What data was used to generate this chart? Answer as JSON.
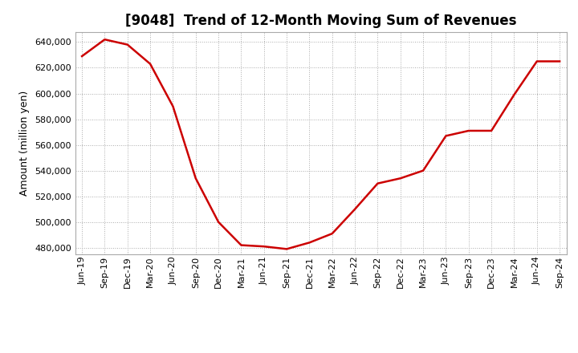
{
  "title": "[9048]  Trend of 12-Month Moving Sum of Revenues",
  "ylabel": "Amount (million yen)",
  "line_color": "#cc0000",
  "background_color": "#ffffff",
  "plot_bg_color": "#ffffff",
  "grid_color": "#aaaaaa",
  "x_labels": [
    "Jun-19",
    "Sep-19",
    "Dec-19",
    "Mar-20",
    "Jun-20",
    "Sep-20",
    "Dec-20",
    "Mar-21",
    "Jun-21",
    "Sep-21",
    "Dec-21",
    "Mar-22",
    "Jun-22",
    "Sep-22",
    "Dec-22",
    "Mar-23",
    "Jun-23",
    "Sep-23",
    "Dec-23",
    "Mar-24",
    "Jun-24",
    "Sep-24"
  ],
  "x_values": [
    0,
    1,
    2,
    3,
    4,
    5,
    6,
    7,
    8,
    9,
    10,
    11,
    12,
    13,
    14,
    15,
    16,
    17,
    18,
    19,
    20,
    21
  ],
  "y_values": [
    629000,
    642000,
    638000,
    623000,
    590000,
    534000,
    500000,
    482000,
    481000,
    479000,
    484000,
    491000,
    510000,
    530000,
    534000,
    540000,
    567000,
    571000,
    571000,
    599000,
    625000,
    625000
  ],
  "ylim": [
    475000,
    648000
  ],
  "yticks": [
    480000,
    500000,
    520000,
    540000,
    560000,
    580000,
    600000,
    620000,
    640000
  ],
  "title_fontsize": 12,
  "label_fontsize": 9,
  "tick_fontsize": 8,
  "line_width": 1.8
}
